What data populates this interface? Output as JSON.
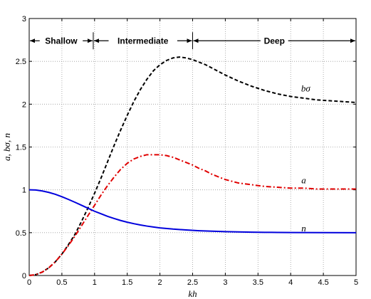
{
  "chart_data": {
    "type": "line",
    "xlabel": "kh",
    "ylabel": "a, bσ, n",
    "xlim": [
      0,
      5
    ],
    "ylim": [
      0,
      3
    ],
    "xticks": [
      "0",
      "0.5",
      "1",
      "1.5",
      "2",
      "2.5",
      "3",
      "3.5",
      "4",
      "4.5",
      "5"
    ],
    "yticks": [
      "0",
      "0.5",
      "1",
      "1.5",
      "2",
      "2.5",
      "3"
    ],
    "grid": true,
    "regions": [
      {
        "label": "Shallow",
        "from": 0,
        "to": 0.98
      },
      {
        "label": "Intermediate",
        "from": 0.98,
        "to": 2.5
      },
      {
        "label": "Deep",
        "from": 2.5,
        "to": 5
      }
    ],
    "region_arrow_y": 2.74,
    "series": [
      {
        "name": "bσ",
        "color": "#000000",
        "style": "dashed",
        "label_at": [
          4.23,
          2.18
        ],
        "x": [
          0,
          0.1,
          0.2,
          0.3,
          0.4,
          0.5,
          0.6,
          0.7,
          0.8,
          0.9,
          1.0,
          1.1,
          1.2,
          1.3,
          1.4,
          1.5,
          1.6,
          1.7,
          1.8,
          1.9,
          2.0,
          2.1,
          2.2,
          2.3,
          2.4,
          2.5,
          2.6,
          2.7,
          2.8,
          2.9,
          3.0,
          3.2,
          3.4,
          3.6,
          3.8,
          4.0,
          4.2,
          4.4,
          4.6,
          4.8,
          5.0
        ],
        "y": [
          0,
          0.01,
          0.04,
          0.09,
          0.16,
          0.25,
          0.36,
          0.48,
          0.63,
          0.79,
          0.96,
          1.14,
          1.33,
          1.52,
          1.7,
          1.87,
          2.03,
          2.17,
          2.29,
          2.39,
          2.46,
          2.51,
          2.54,
          2.55,
          2.54,
          2.52,
          2.49,
          2.46,
          2.42,
          2.38,
          2.34,
          2.27,
          2.21,
          2.16,
          2.12,
          2.09,
          2.07,
          2.05,
          2.04,
          2.03,
          2.02
        ]
      },
      {
        "name": "a",
        "color": "#e00000",
        "style": "dashdot",
        "label_at": [
          4.2,
          1.11
        ],
        "x": [
          0,
          0.1,
          0.2,
          0.3,
          0.4,
          0.5,
          0.6,
          0.7,
          0.8,
          0.9,
          1.0,
          1.1,
          1.2,
          1.3,
          1.4,
          1.5,
          1.6,
          1.7,
          1.8,
          1.9,
          2.0,
          2.1,
          2.2,
          2.3,
          2.4,
          2.5,
          2.6,
          2.7,
          2.8,
          2.9,
          3.0,
          3.2,
          3.4,
          3.6,
          3.8,
          4.0,
          4.2,
          4.4,
          4.6,
          4.8,
          5.0
        ],
        "y": [
          0,
          0.01,
          0.04,
          0.09,
          0.16,
          0.25,
          0.35,
          0.46,
          0.58,
          0.7,
          0.82,
          0.94,
          1.05,
          1.15,
          1.24,
          1.31,
          1.36,
          1.39,
          1.41,
          1.41,
          1.41,
          1.4,
          1.38,
          1.35,
          1.32,
          1.29,
          1.25,
          1.22,
          1.18,
          1.15,
          1.12,
          1.08,
          1.06,
          1.04,
          1.03,
          1.02,
          1.02,
          1.01,
          1.01,
          1.01,
          1.01
        ]
      },
      {
        "name": "n",
        "color": "#0000dd",
        "style": "solid",
        "label_at": [
          4.2,
          0.55
        ],
        "x": [
          0,
          0.1,
          0.2,
          0.3,
          0.4,
          0.5,
          0.6,
          0.7,
          0.8,
          0.9,
          1.0,
          1.1,
          1.2,
          1.3,
          1.4,
          1.5,
          1.6,
          1.7,
          1.8,
          1.9,
          2.0,
          2.2,
          2.4,
          2.6,
          2.8,
          3.0,
          3.2,
          3.4,
          3.6,
          3.8,
          4.0,
          4.5,
          5.0
        ],
        "y": [
          1.0,
          0.998,
          0.987,
          0.97,
          0.948,
          0.92,
          0.888,
          0.855,
          0.82,
          0.785,
          0.75,
          0.72,
          0.69,
          0.665,
          0.642,
          0.622,
          0.605,
          0.59,
          0.577,
          0.566,
          0.556,
          0.542,
          0.532,
          0.523,
          0.517,
          0.512,
          0.509,
          0.506,
          0.504,
          0.503,
          0.502,
          0.501,
          0.5
        ]
      }
    ]
  }
}
